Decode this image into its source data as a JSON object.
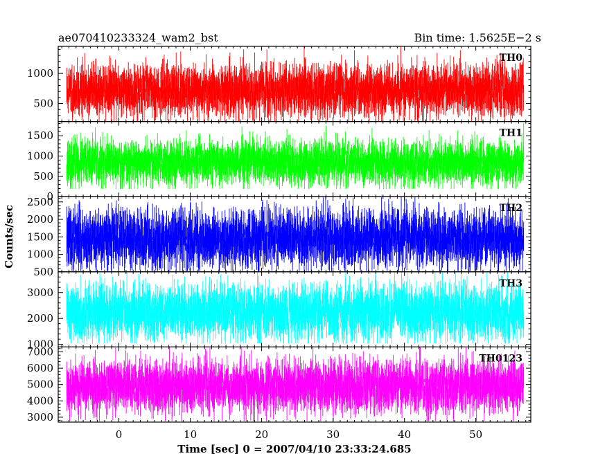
{
  "chart_data": {
    "type": "line",
    "title": "ae070410233324_wam2_bst",
    "subtitle": "Bin time: 1.5625E−2 s",
    "xlabel": "Time [sec] 0 = 2007/04/10 23:33:24.685",
    "ylabel": "Counts/sec",
    "xlim": [
      -8.5,
      57.7
    ],
    "data_x_range": [
      -7.3,
      56.7
    ],
    "xticks": [
      0,
      10,
      20,
      30,
      40,
      50
    ],
    "xtick_labels": [
      "0",
      "10",
      "20",
      "30",
      "40",
      "50"
    ],
    "grid": false,
    "panels": [
      {
        "name": "TH0",
        "color": "#ff0000",
        "ylim": [
          200,
          1450
        ],
        "yticks": [
          500,
          1000
        ],
        "ytick_labels": [
          "500",
          "1000"
        ],
        "mean": 720,
        "noise": 170,
        "min": 200,
        "max": 1450,
        "seed": 11
      },
      {
        "name": "TH1",
        "color": "#00ff00",
        "ylim": [
          0,
          1850
        ],
        "yticks": [
          0,
          500,
          1000,
          1500
        ],
        "ytick_labels": [
          "0",
          "500",
          "1000",
          "1500"
        ],
        "mean": 830,
        "noise": 220,
        "min": 190,
        "max": 1850,
        "seed": 23
      },
      {
        "name": "TH2",
        "color": "#0000ff",
        "ylim": [
          500,
          2650
        ],
        "yticks": [
          500,
          1000,
          1500,
          2000,
          2500
        ],
        "ytick_labels": [
          "500",
          "1000",
          "1500",
          "2000",
          "2500"
        ],
        "mean": 1450,
        "noise": 330,
        "min": 520,
        "max": 2650,
        "seed": 37
      },
      {
        "name": "TH3",
        "color": "#00ffff",
        "ylim": [
          900,
          3800
        ],
        "yticks": [
          1000,
          2000,
          3000
        ],
        "ytick_labels": [
          "1000",
          "2000",
          "3000"
        ],
        "mean": 2250,
        "noise": 430,
        "min": 1030,
        "max": 3800,
        "seed": 41
      },
      {
        "name": "TH0123",
        "color": "#ff00ff",
        "ylim": [
          2700,
          7300
        ],
        "yticks": [
          3000,
          4000,
          5000,
          6000,
          7000
        ],
        "ytick_labels": [
          "3000",
          "4000",
          "5000",
          "6000",
          "7000"
        ],
        "mean": 4900,
        "noise": 650,
        "min": 2750,
        "max": 7300,
        "seed": 53
      }
    ]
  }
}
